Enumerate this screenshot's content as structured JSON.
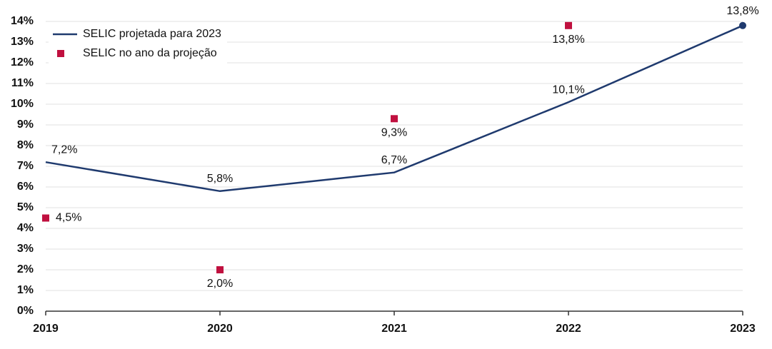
{
  "chart_data": {
    "type": "line",
    "categories": [
      "2019",
      "2020",
      "2021",
      "2022",
      "2023"
    ],
    "series": [
      {
        "name": "SELIC projetada para 2023",
        "color": "#1f3a6e",
        "type": "line",
        "values": [
          7.2,
          5.8,
          6.7,
          10.1,
          13.8
        ],
        "value_labels": [
          "7,2%",
          "5,8%",
          "6,7%",
          "10,1%",
          "13,8%"
        ]
      },
      {
        "name": "SELIC no ano da projeção",
        "color": "#c0103f",
        "type": "scatter",
        "values": [
          4.5,
          2.0,
          9.3,
          13.8,
          null
        ],
        "value_labels": [
          "4,5%",
          "2,0%",
          "9,3%",
          "13,8%",
          null
        ]
      }
    ],
    "ylim": [
      0,
      14
    ],
    "yticks": [
      {
        "value": 0,
        "label": "0%"
      },
      {
        "value": 1,
        "label": "1%"
      },
      {
        "value": 2,
        "label": "2%"
      },
      {
        "value": 3,
        "label": "3%"
      },
      {
        "value": 4,
        "label": "4%"
      },
      {
        "value": 5,
        "label": "5%"
      },
      {
        "value": 6,
        "label": "6%"
      },
      {
        "value": 7,
        "label": "7%"
      },
      {
        "value": 8,
        "label": "8%"
      },
      {
        "value": 9,
        "label": "9%"
      },
      {
        "value": 10,
        "label": "10%"
      },
      {
        "value": 11,
        "label": "11%"
      },
      {
        "value": 12,
        "label": "12%"
      },
      {
        "value": 13,
        "label": "13%"
      },
      {
        "value": 14,
        "label": "14%"
      }
    ],
    "grid": true,
    "legend": "top-left"
  }
}
